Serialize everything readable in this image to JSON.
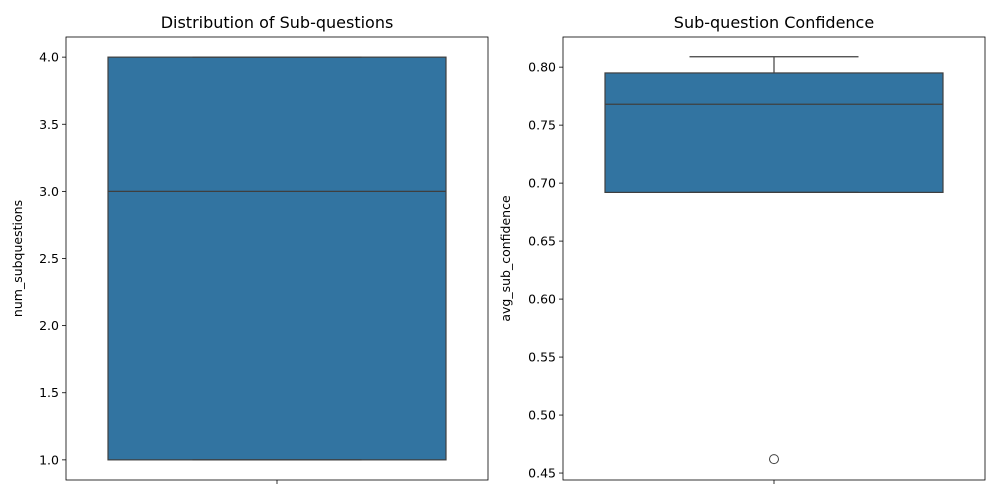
{
  "colors": {
    "box_fill": "#3274a1",
    "line": "#3f3f3f",
    "background": "#ffffff",
    "spine": "#000000"
  },
  "chart_data": [
    {
      "type": "box",
      "title": "Distribution of Sub-questions",
      "xlabel": "",
      "ylabel": "num_subquestions",
      "ylim": [
        0.85,
        4.15
      ],
      "yticks": [
        1.0,
        1.5,
        2.0,
        2.5,
        3.0,
        3.5,
        4.0
      ],
      "ytick_labels": [
        "1.0",
        "1.5",
        "2.0",
        "2.5",
        "3.0",
        "3.5",
        "4.0"
      ],
      "grid": false,
      "box": {
        "whisker_low": 1.0,
        "q1": 1.0,
        "median": 3.0,
        "q3": 4.0,
        "whisker_high": 4.0,
        "outliers": []
      }
    },
    {
      "type": "box",
      "title": "Sub-question Confidence",
      "xlabel": "",
      "ylabel": "avg_sub_confidence",
      "ylim": [
        0.444,
        0.826
      ],
      "yticks": [
        0.45,
        0.5,
        0.55,
        0.6,
        0.65,
        0.7,
        0.75,
        0.8
      ],
      "ytick_labels": [
        "0.45",
        "0.50",
        "0.55",
        "0.60",
        "0.65",
        "0.70",
        "0.75",
        "0.80"
      ],
      "grid": false,
      "box": {
        "whisker_low": 0.692,
        "q1": 0.692,
        "median": 0.768,
        "q3": 0.795,
        "whisker_high": 0.809,
        "outliers": [
          0.462
        ]
      }
    }
  ]
}
